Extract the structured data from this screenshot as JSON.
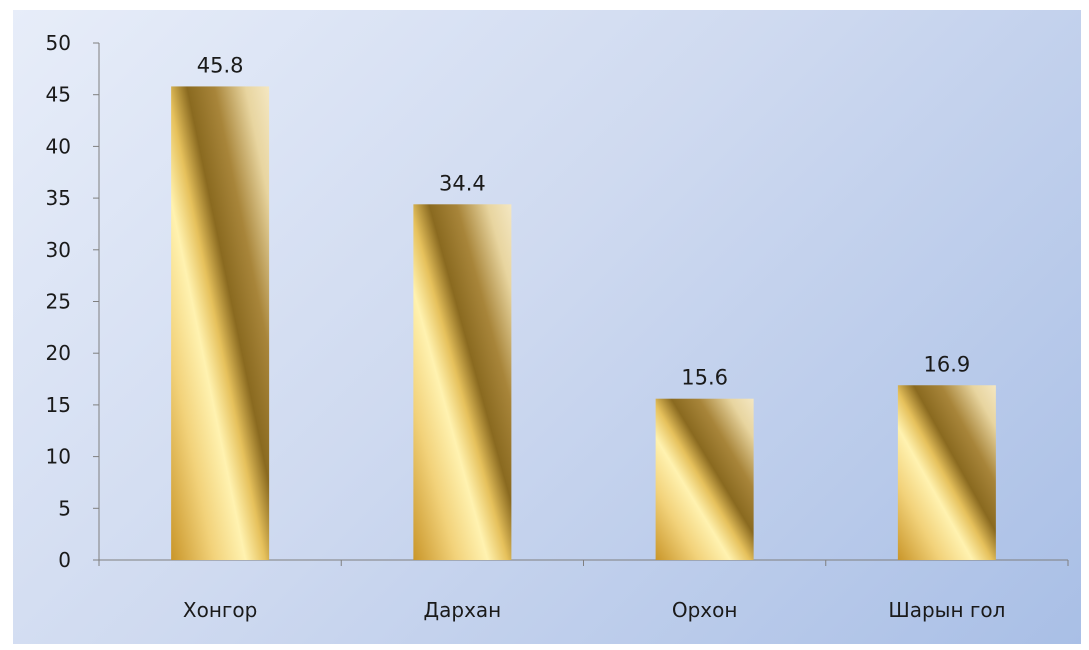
{
  "chart_data": {
    "type": "bar",
    "categories": [
      "Хонгор",
      "Дархан",
      "Орхон",
      "Шарын гол"
    ],
    "values": [
      45.8,
      34.4,
      15.6,
      16.9
    ],
    "data_labels": [
      "45.8",
      "34.4",
      "15.6",
      "16.9"
    ],
    "yticks": [
      "0",
      "5",
      "10",
      "15",
      "20",
      "25",
      "30",
      "35",
      "40",
      "45",
      "50"
    ],
    "ylim": [
      0,
      50
    ],
    "title": "",
    "xlabel": "",
    "ylabel": "",
    "grid": false,
    "legend": "none"
  },
  "colors": {
    "bar_gold_light": "#fff2b0",
    "bar_gold_mid": "#d9b44a",
    "bar_gold_dark": "#8a6a20",
    "background_light": "#e7edf9",
    "background_dark": "#a9bfe6"
  }
}
